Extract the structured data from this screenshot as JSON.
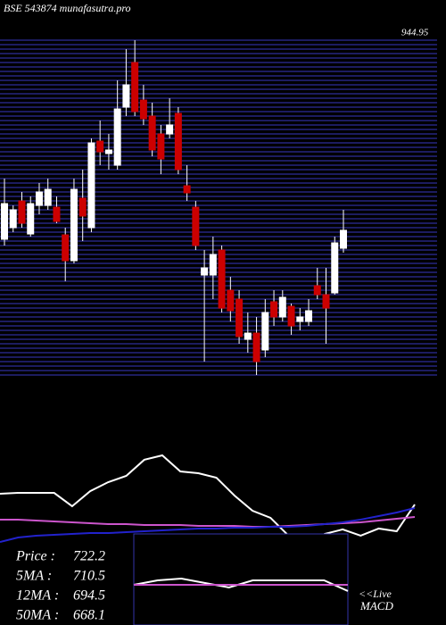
{
  "header": "BSE 543874  munafasutra.pro",
  "chart_data": [
    {
      "type": "candlestick",
      "ylim": [
        552.7,
        944.95
      ],
      "yticks": [
        944.95
      ],
      "up_color": "#ffffff",
      "down_color": "#cc0000",
      "wick_color": "#ffffff",
      "open": [
        711.7,
        725.3,
        756.6,
        717.9,
        751.4,
        751.4,
        749.3,
        716.9,
        686.6,
        759.8,
        725.3,
        826.7,
        812.1,
        798.5,
        866.5,
        918.8,
        874.8,
        856.0,
        835.1,
        835.1,
        859.2,
        774.4,
        749.3,
        669.8,
        669.8,
        699.1,
        652.0,
        641.6,
        594.5,
        601.8,
        582.0,
        638.5,
        620.7,
        633.2,
        615.4,
        615.4,
        657.3,
        646.8,
        648.9,
        701.2
      ],
      "high": [
        782.8,
        751.4,
        767.1,
        761.9,
        777.6,
        782.8,
        761.9,
        725.3,
        782.8,
        793.3,
        829.9,
        850.8,
        835.1,
        897.9,
        934.5,
        944.9,
        892.6,
        871.7,
        845.6,
        876.9,
        866.5,
        798.5,
        756.6,
        699.1,
        714.8,
        704.4,
        667.7,
        652.0,
        625.9,
        620.7,
        641.6,
        652.0,
        652.0,
        636.4,
        631.1,
        641.6,
        678.2,
        678.2,
        714.8,
        746.2
      ],
      "low": [
        704.4,
        720.0,
        725.3,
        714.8,
        741.0,
        746.2,
        730.5,
        662.5,
        683.4,
        709.6,
        720.0,
        798.5,
        793.3,
        793.3,
        856.0,
        856.0,
        845.6,
        808.9,
        788.0,
        829.9,
        788.0,
        756.6,
        699.1,
        568.4,
        641.6,
        625.9,
        615.4,
        589.3,
        578.8,
        552.7,
        573.6,
        610.2,
        615.4,
        599.8,
        605.0,
        610.2,
        641.6,
        589.3,
        646.8,
        696.0
      ],
      "close": [
        753.5,
        746.2,
        730.5,
        753.5,
        767.1,
        770.2,
        732.6,
        686.6,
        770.2,
        738.9,
        824.6,
        814.2,
        816.3,
        864.4,
        892.6,
        861.3,
        852.9,
        816.3,
        805.8,
        845.6,
        793.3,
        766.1,
        704.4,
        678.2,
        693.9,
        631.1,
        628.0,
        597.7,
        601.8,
        568.4,
        625.9,
        620.7,
        643.7,
        610.2,
        620.7,
        628.0,
        646.8,
        631.1,
        707.5,
        722.2
      ]
    },
    {
      "type": "line",
      "ylim": [
        0,
        100
      ],
      "series": [
        {
          "color": "#ffffff",
          "values": [
            51.8,
            52.7,
            52.7,
            52.7,
            39.1,
            54.5,
            63.6,
            70.0,
            86.4,
            90.9,
            74.5,
            72.7,
            68.2,
            50.0,
            34.5,
            27.3,
            9.1,
            -4.5,
            10.9,
            15.5,
            9.1,
            16.4,
            13.6,
            40.9
          ]
        },
        {
          "color": "#cc55cc",
          "values": [
            25.5,
            25.5,
            24.5,
            23.6,
            22.7,
            21.8,
            20.9,
            20.9,
            20.0,
            20.0,
            20.0,
            19.1,
            19.1,
            19.1,
            18.2,
            18.2,
            19.1,
            20.0,
            20.9,
            21.8,
            22.7,
            24.5,
            26.4,
            28.2
          ]
        },
        {
          "color": "#2222cc",
          "values": [
            2.7,
            7.3,
            9.1,
            10.0,
            10.9,
            11.8,
            11.8,
            12.7,
            13.6,
            14.5,
            15.5,
            16.4,
            16.4,
            17.3,
            17.3,
            18.2,
            18.2,
            19.1,
            20.9,
            22.7,
            25.5,
            29.1,
            32.7,
            37.3
          ]
        }
      ]
    },
    {
      "type": "line",
      "title": "MACD",
      "note": "<<Live",
      "ylim": [
        0,
        100
      ],
      "series": [
        {
          "color": "#ffffff",
          "values": [
            44.1,
            49.0,
            51.0,
            46.1,
            41.2,
            49.0,
            49.0,
            49.0,
            49.0,
            37.3
          ]
        },
        {
          "color": "#cc55cc",
          "values": [
            44.1,
            44.1,
            44.1,
            44.1,
            44.1,
            44.1,
            44.1,
            44.1,
            44.1,
            44.1
          ]
        }
      ]
    }
  ],
  "legend": [
    {
      "label": "Price :",
      "value": 722.2
    },
    {
      "label": "5MA :",
      "value": 710.5
    },
    {
      "label": "12MA :",
      "value": 694.5
    },
    {
      "label": "50MA :",
      "value": 668.1
    }
  ]
}
